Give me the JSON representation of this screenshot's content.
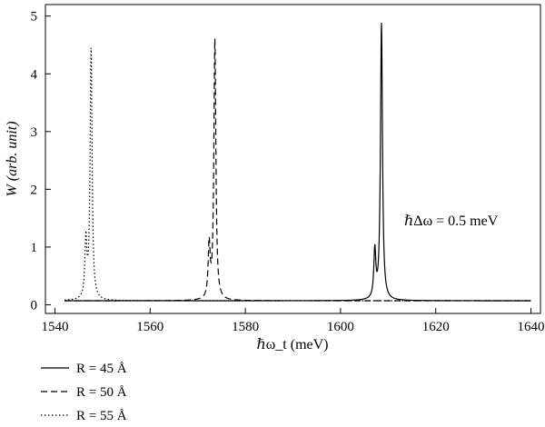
{
  "chart_data": {
    "type": "line",
    "xlabel": "ℏω_t (meV)",
    "ylabel": "W (arb. unit)",
    "xlim": [
      1538,
      1642
    ],
    "ylim": [
      -0.15,
      5.2
    ],
    "xticks": [
      1540,
      1560,
      1580,
      1600,
      1620,
      1640
    ],
    "yticks": [
      0,
      1,
      2,
      3,
      4,
      5
    ],
    "annotation": "ℏΔω = 0.5 meV",
    "grid": false,
    "legend_position": "below-left",
    "series": [
      {
        "name": "R = 45 Å",
        "style": "solid",
        "baseline": 0.07,
        "peaks": [
          {
            "x": 1607.2,
            "height": 0.9
          },
          {
            "x": 1608.6,
            "height": 4.86
          }
        ]
      },
      {
        "name": "R = 50 Å",
        "style": "dashed",
        "baseline": 0.07,
        "peaks": [
          {
            "x": 1572.4,
            "height": 0.99
          },
          {
            "x": 1573.6,
            "height": 4.57
          }
        ]
      },
      {
        "name": "R = 55 Å",
        "style": "dotted",
        "baseline": 0.07,
        "peaks": [
          {
            "x": 1546.5,
            "height": 1.07
          },
          {
            "x": 1547.6,
            "height": 4.4
          }
        ]
      }
    ]
  }
}
